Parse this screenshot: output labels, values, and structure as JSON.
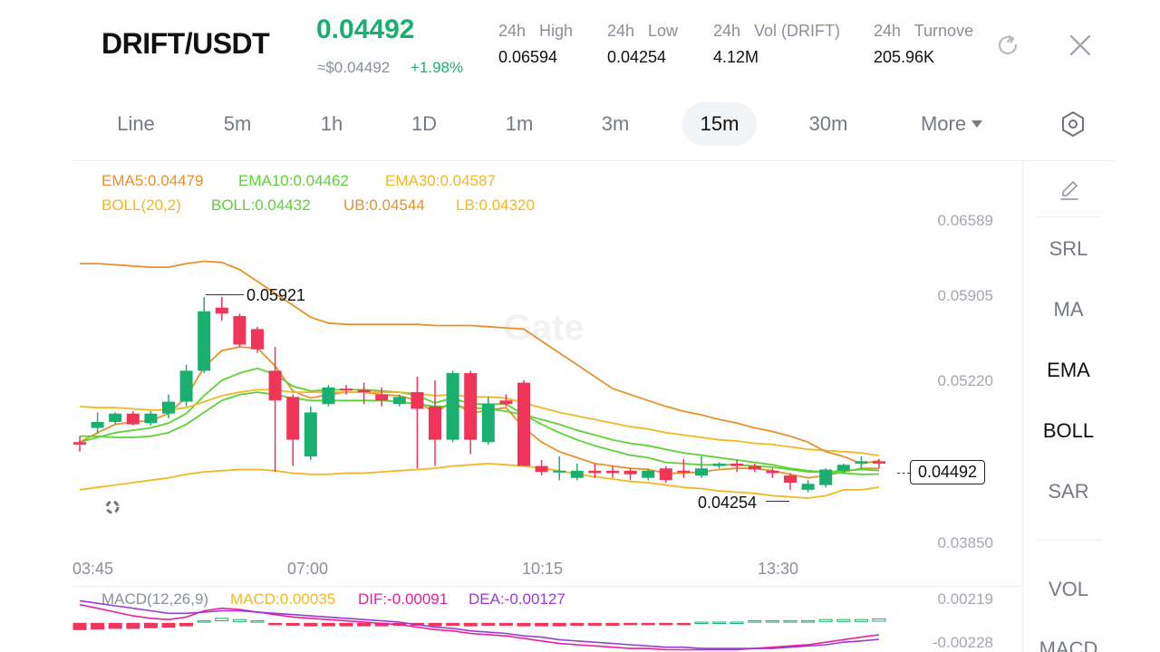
{
  "header": {
    "pair": "DRIFT/USDT",
    "last_price": "0.04492",
    "fiat_price": "≈$0.04492",
    "change": "+1.98%",
    "stats": [
      {
        "label": "24h   High",
        "value": "0.06594"
      },
      {
        "label": "24h   Low",
        "value": "0.04254"
      },
      {
        "label": "24h   Vol (DRIFT)",
        "value": "4.12M"
      },
      {
        "label": "24h   Turnove",
        "value": "205.96K"
      }
    ],
    "refresh_icon": "refresh-icon",
    "close_icon": "close-icon"
  },
  "timeframes": {
    "tabs": [
      "Line",
      "5m",
      "1h",
      "1D",
      "1m",
      "3m",
      "15m",
      "30m"
    ],
    "active": "15m",
    "more_label": "More",
    "settings_icon": "hexagon-settings-icon"
  },
  "legend": {
    "ema5": "EMA5:0.04479",
    "ema10": "EMA10:0.04462",
    "ema30": "EMA30:0.04587",
    "boll": "BOLL(20,2)",
    "boll_mid": "BOLL:0.04432",
    "ub": "UB:0.04544",
    "lb": "LB:0.04320"
  },
  "colors": {
    "up": "#1aaf6e",
    "down": "#f0355a",
    "ema5": "#e8912c",
    "ema10": "#5cd334",
    "ema30": "#f2b824",
    "boll": "#f2b824",
    "ub": "#e8912c",
    "lb": "#f2b824",
    "macd_dif": "#e6209a",
    "macd_dea": "#9c3ad6"
  },
  "y_axis": [
    "0.06589",
    "0.05905",
    "0.05220",
    "0.03850"
  ],
  "x_axis": [
    "03:45",
    "07:00",
    "10:15",
    "13:30"
  ],
  "annotations": {
    "high": "0.05921",
    "low": "0.04254",
    "current": "0.04492"
  },
  "watermark": "Gate",
  "macd": {
    "legend": "MACD(12,26,9)",
    "macd": "MACD:0.00035",
    "dif": "DIF:-0.00091",
    "dea": "DEA:-0.00127",
    "y_top": "0.00219",
    "y_bottom": "-0.00228"
  },
  "indicators": {
    "edit_icon": "pencil-icon",
    "items": [
      "SRL",
      "MA",
      "EMA",
      "BOLL",
      "SAR"
    ],
    "active": [
      "EMA",
      "BOLL"
    ],
    "lower": [
      "VOL",
      "MACD"
    ]
  },
  "chart_data": {
    "type": "candlestick",
    "ylim": [
      0.0385,
      0.06589
    ],
    "candles": [
      {
        "o": 0.047,
        "h": 0.0475,
        "l": 0.0462,
        "c": 0.0468
      },
      {
        "o": 0.0482,
        "h": 0.0495,
        "l": 0.0477,
        "c": 0.0487
      },
      {
        "o": 0.0487,
        "h": 0.0495,
        "l": 0.0485,
        "c": 0.0494
      },
      {
        "o": 0.0494,
        "h": 0.0496,
        "l": 0.0484,
        "c": 0.0485
      },
      {
        "o": 0.0486,
        "h": 0.0496,
        "l": 0.0484,
        "c": 0.0494
      },
      {
        "o": 0.0494,
        "h": 0.051,
        "l": 0.049,
        "c": 0.0504
      },
      {
        "o": 0.0504,
        "h": 0.0535,
        "l": 0.05,
        "c": 0.053
      },
      {
        "o": 0.053,
        "h": 0.0592,
        "l": 0.0528,
        "c": 0.058
      },
      {
        "o": 0.0583,
        "h": 0.0592,
        "l": 0.0572,
        "c": 0.0578
      },
      {
        "o": 0.0576,
        "h": 0.0578,
        "l": 0.055,
        "c": 0.0552
      },
      {
        "o": 0.0565,
        "h": 0.0567,
        "l": 0.0545,
        "c": 0.0548
      },
      {
        "o": 0.053,
        "h": 0.055,
        "l": 0.0445,
        "c": 0.0505
      },
      {
        "o": 0.0508,
        "h": 0.051,
        "l": 0.045,
        "c": 0.0472
      },
      {
        "o": 0.0458,
        "h": 0.05,
        "l": 0.0455,
        "c": 0.0495
      },
      {
        "o": 0.0502,
        "h": 0.0518,
        "l": 0.05,
        "c": 0.0516
      },
      {
        "o": 0.0515,
        "h": 0.0518,
        "l": 0.051,
        "c": 0.0514
      },
      {
        "o": 0.0514,
        "h": 0.052,
        "l": 0.0502,
        "c": 0.0512
      },
      {
        "o": 0.051,
        "h": 0.0516,
        "l": 0.05,
        "c": 0.0505
      },
      {
        "o": 0.0502,
        "h": 0.051,
        "l": 0.05,
        "c": 0.0508
      },
      {
        "o": 0.0512,
        "h": 0.0525,
        "l": 0.0448,
        "c": 0.0498
      },
      {
        "o": 0.05,
        "h": 0.0522,
        "l": 0.045,
        "c": 0.0472
      },
      {
        "o": 0.0472,
        "h": 0.053,
        "l": 0.047,
        "c": 0.0528
      },
      {
        "o": 0.0528,
        "h": 0.053,
        "l": 0.046,
        "c": 0.0472
      },
      {
        "o": 0.047,
        "h": 0.0508,
        "l": 0.0468,
        "c": 0.0502
      },
      {
        "o": 0.0505,
        "h": 0.051,
        "l": 0.05,
        "c": 0.0502
      },
      {
        "o": 0.052,
        "h": 0.0522,
        "l": 0.045,
        "c": 0.045
      },
      {
        "o": 0.045,
        "h": 0.0455,
        "l": 0.0442,
        "c": 0.0445
      },
      {
        "o": 0.0445,
        "h": 0.0458,
        "l": 0.0438,
        "c": 0.0446
      },
      {
        "o": 0.044,
        "h": 0.0452,
        "l": 0.0438,
        "c": 0.0446
      },
      {
        "o": 0.0446,
        "h": 0.0452,
        "l": 0.044,
        "c": 0.0444
      },
      {
        "o": 0.0446,
        "h": 0.045,
        "l": 0.044,
        "c": 0.0444
      },
      {
        "o": 0.0446,
        "h": 0.0448,
        "l": 0.0438,
        "c": 0.0443
      },
      {
        "o": 0.044,
        "h": 0.0448,
        "l": 0.0438,
        "c": 0.0446
      },
      {
        "o": 0.0448,
        "h": 0.045,
        "l": 0.0436,
        "c": 0.0438
      },
      {
        "o": 0.0446,
        "h": 0.0456,
        "l": 0.044,
        "c": 0.0445
      },
      {
        "o": 0.0442,
        "h": 0.0458,
        "l": 0.044,
        "c": 0.0448
      },
      {
        "o": 0.045,
        "h": 0.0453,
        "l": 0.0448,
        "c": 0.0452
      },
      {
        "o": 0.0452,
        "h": 0.0455,
        "l": 0.0445,
        "c": 0.045
      },
      {
        "o": 0.045,
        "h": 0.0452,
        "l": 0.0445,
        "c": 0.0447
      },
      {
        "o": 0.0446,
        "h": 0.0448,
        "l": 0.044,
        "c": 0.0444
      },
      {
        "o": 0.0442,
        "h": 0.0444,
        "l": 0.043,
        "c": 0.0436
      },
      {
        "o": 0.043,
        "h": 0.0438,
        "l": 0.0428,
        "c": 0.0435
      },
      {
        "o": 0.0434,
        "h": 0.0448,
        "l": 0.0432,
        "c": 0.0447
      },
      {
        "o": 0.0446,
        "h": 0.0452,
        "l": 0.0444,
        "c": 0.0451
      },
      {
        "o": 0.0452,
        "h": 0.0458,
        "l": 0.0448,
        "c": 0.0454
      },
      {
        "o": 0.0454,
        "h": 0.0456,
        "l": 0.0448,
        "c": 0.0452
      }
    ],
    "series": [
      {
        "name": "EMA5",
        "values": [
          0.047,
          0.0478,
          0.0485,
          0.0487,
          0.0488,
          0.0494,
          0.0508,
          0.0533,
          0.0547,
          0.055,
          0.0549,
          0.0534,
          0.0513,
          0.0507,
          0.051,
          0.0512,
          0.0512,
          0.051,
          0.0509,
          0.0505,
          0.0494,
          0.0505,
          0.0494,
          0.0497,
          0.0499,
          0.0482,
          0.047,
          0.0462,
          0.0457,
          0.0452,
          0.045,
          0.0448,
          0.0447,
          0.0444,
          0.0444,
          0.0445,
          0.0447,
          0.0448,
          0.0448,
          0.0446,
          0.0443,
          0.044,
          0.0442,
          0.0445,
          0.0448,
          0.04479
        ]
      },
      {
        "name": "EMA10",
        "values": [
          0.047,
          0.0474,
          0.0478,
          0.048,
          0.0482,
          0.0486,
          0.0494,
          0.0509,
          0.0522,
          0.0528,
          0.0532,
          0.0527,
          0.0517,
          0.0513,
          0.0514,
          0.0514,
          0.0514,
          0.0513,
          0.0512,
          0.0509,
          0.0503,
          0.0507,
          0.0502,
          0.0502,
          0.0502,
          0.0493,
          0.0485,
          0.0478,
          0.0472,
          0.0467,
          0.0463,
          0.0459,
          0.0457,
          0.0453,
          0.0452,
          0.0451,
          0.0451,
          0.0451,
          0.045,
          0.0449,
          0.0447,
          0.0445,
          0.0445,
          0.0446,
          0.0447,
          0.04462
        ]
      },
      {
        "name": "EMA30",
        "values": [
          0.05,
          0.0499,
          0.0499,
          0.0498,
          0.0497,
          0.0497,
          0.0499,
          0.0504,
          0.0509,
          0.0512,
          0.0514,
          0.0514,
          0.0512,
          0.0512,
          0.0512,
          0.0512,
          0.0512,
          0.0512,
          0.0512,
          0.0511,
          0.0509,
          0.051,
          0.0508,
          0.0508,
          0.0507,
          0.0503,
          0.0499,
          0.0495,
          0.0492,
          0.0489,
          0.0486,
          0.0483,
          0.0481,
          0.0478,
          0.0476,
          0.0474,
          0.0472,
          0.0471,
          0.0469,
          0.0468,
          0.0466,
          0.0464,
          0.0463,
          0.0462,
          0.0461,
          0.04587
        ]
      },
      {
        "name": "UB",
        "values": [
          0.062,
          0.062,
          0.0619,
          0.0618,
          0.0617,
          0.0617,
          0.062,
          0.0622,
          0.0621,
          0.0615,
          0.0605,
          0.0595,
          0.0585,
          0.0575,
          0.057,
          0.0569,
          0.0569,
          0.0569,
          0.0569,
          0.0569,
          0.0568,
          0.0568,
          0.0568,
          0.0567,
          0.0566,
          0.0565,
          0.0555,
          0.0545,
          0.0535,
          0.0525,
          0.0515,
          0.051,
          0.0505,
          0.05,
          0.0496,
          0.0493,
          0.0489,
          0.0486,
          0.0482,
          0.0479,
          0.0475,
          0.047,
          0.0462,
          0.0458,
          0.0452,
          0.04544
        ]
      },
      {
        "name": "BOLL",
        "values": [
          0.0475,
          0.0475,
          0.0474,
          0.0474,
          0.0475,
          0.0478,
          0.0485,
          0.0495,
          0.0505,
          0.051,
          0.0512,
          0.051,
          0.0507,
          0.0505,
          0.0505,
          0.0505,
          0.0505,
          0.0505,
          0.0504,
          0.0502,
          0.05,
          0.05,
          0.0499,
          0.0498,
          0.0496,
          0.0493,
          0.0489,
          0.0485,
          0.048,
          0.0476,
          0.0472,
          0.0469,
          0.0467,
          0.0464,
          0.0461,
          0.0459,
          0.0457,
          0.0455,
          0.0453,
          0.0451,
          0.0448,
          0.0446,
          0.0445,
          0.0444,
          0.0443,
          0.04432
        ]
      },
      {
        "name": "LB",
        "values": [
          0.043,
          0.0432,
          0.0434,
          0.0436,
          0.0438,
          0.044,
          0.0443,
          0.0445,
          0.0446,
          0.0447,
          0.0447,
          0.0446,
          0.0444,
          0.0443,
          0.0443,
          0.0444,
          0.0444,
          0.0445,
          0.0446,
          0.0447,
          0.0448,
          0.045,
          0.0451,
          0.0452,
          0.0451,
          0.045,
          0.0448,
          0.0446,
          0.0443,
          0.0441,
          0.0439,
          0.0437,
          0.0436,
          0.0434,
          0.0432,
          0.0431,
          0.0429,
          0.0428,
          0.0427,
          0.0425,
          0.0424,
          0.0423,
          0.0425,
          0.043,
          0.043,
          0.0432
        ]
      }
    ],
    "macd_hist": [
      -0.001,
      -0.0009,
      -0.0008,
      -0.0008,
      -0.0007,
      -0.0006,
      -0.0004,
      0.0002,
      0.0004,
      0.0003,
      0.0002,
      -0.0001,
      -0.0003,
      -0.0004,
      -0.0004,
      -0.0004,
      -0.0004,
      -0.0004,
      -0.0003,
      -0.0003,
      -0.0004,
      -0.0003,
      -0.0004,
      -0.0003,
      -0.0003,
      -0.0004,
      -0.0004,
      -0.0004,
      -0.0003,
      -0.0003,
      -0.0003,
      -0.0002,
      -0.0002,
      -0.0001,
      -0.0001,
      0.0001,
      0.0001,
      0.0001,
      0.0002,
      0.0002,
      0.0002,
      0.0002,
      0.0003,
      0.0003,
      0.0003,
      0.00035
    ],
    "dif": [
      0.0015,
      0.0012,
      0.0009,
      0.0006,
      0.0004,
      0.0003,
      0.0005,
      0.001,
      0.0012,
      0.0011,
      0.0009,
      0.0007,
      0.0005,
      0.0004,
      0.0003,
      0.0002,
      0.0001,
      0.0,
      -0.0001,
      -0.0003,
      -0.0005,
      -0.0006,
      -0.0008,
      -0.0009,
      -0.001,
      -0.0012,
      -0.0014,
      -0.0016,
      -0.0017,
      -0.0018,
      -0.0019,
      -0.002,
      -0.002,
      -0.0021,
      -0.0021,
      -0.0021,
      -0.0021,
      -0.0021,
      -0.002,
      -0.0019,
      -0.0018,
      -0.0017,
      -0.0015,
      -0.0013,
      -0.0011,
      -0.00091
    ],
    "dea": [
      0.0018,
      0.0016,
      0.0014,
      0.0012,
      0.001,
      0.0008,
      0.0008,
      0.0009,
      0.001,
      0.001,
      0.0009,
      0.0008,
      0.0007,
      0.0006,
      0.0005,
      0.0004,
      0.0003,
      0.0002,
      0.0001,
      -0.0001,
      -0.0003,
      -0.0004,
      -0.0006,
      -0.0007,
      -0.0008,
      -0.001,
      -0.0011,
      -0.0013,
      -0.0014,
      -0.0015,
      -0.0016,
      -0.0017,
      -0.0018,
      -0.0019,
      -0.0019,
      -0.002,
      -0.002,
      -0.002,
      -0.002,
      -0.002,
      -0.0019,
      -0.0018,
      -0.0017,
      -0.0015,
      -0.0014,
      -0.00127
    ],
    "macd_ylim": [
      -0.00228,
      0.00219
    ]
  }
}
